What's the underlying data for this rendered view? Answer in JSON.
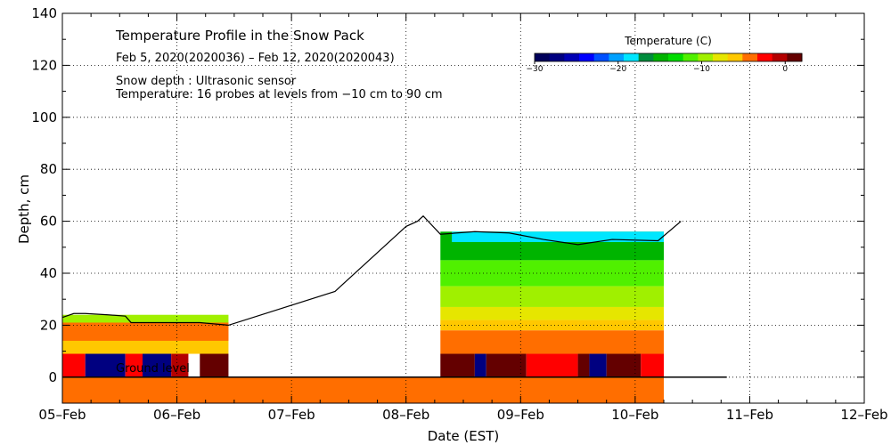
{
  "chart_data": {
    "type": "heatmap",
    "title": "Temperature Profile in the Snow Pack",
    "subtitle": "Feb  5, 2020(2020036) – Feb 12, 2020(2020043)",
    "notes": [
      "Snow depth : Ultrasonic sensor",
      "Temperature: 16 probes at levels from −10 cm to 90 cm"
    ],
    "xlabel": "Date (EST)",
    "ylabel": "Depth, cm",
    "xlim": [
      0,
      7
    ],
    "ylim": [
      -10,
      140
    ],
    "x_ticks": [
      {
        "value": 0,
        "label": "05–Feb"
      },
      {
        "value": 1,
        "label": "06–Feb"
      },
      {
        "value": 2,
        "label": "07–Feb"
      },
      {
        "value": 3,
        "label": "08–Feb"
      },
      {
        "value": 4,
        "label": "09–Feb"
      },
      {
        "value": 5,
        "label": "10–Feb"
      },
      {
        "value": 6,
        "label": "11–Feb"
      },
      {
        "value": 7,
        "label": "12–Feb"
      }
    ],
    "y_ticks": [
      0,
      20,
      40,
      60,
      80,
      100,
      120,
      140
    ],
    "ground_level_label": "Ground level",
    "colorbar": {
      "title": "Temperature (C)",
      "range": [
        -30,
        2
      ],
      "ticks": [
        {
          "value": -30,
          "label": "−30"
        },
        {
          "value": -20,
          "label": "−20"
        },
        {
          "value": -10,
          "label": "−10"
        },
        {
          "value": 0,
          "label": "0"
        }
      ],
      "colors": [
        "#00005a",
        "#000080",
        "#0000b4",
        "#0000ff",
        "#0050ff",
        "#00a0ff",
        "#00e6ff",
        "#008c3c",
        "#00b400",
        "#00dc00",
        "#50f000",
        "#a0f000",
        "#e6e600",
        "#ffc800",
        "#ff6e00",
        "#ff0000",
        "#b40000",
        "#640000"
      ]
    },
    "snow_depth": [
      [
        0.0,
        23
      ],
      [
        0.1,
        24.5
      ],
      [
        0.2,
        24.5
      ],
      [
        0.4,
        24
      ],
      [
        0.55,
        23.5
      ],
      [
        0.6,
        21
      ],
      [
        1.0,
        21
      ],
      [
        1.2,
        21
      ],
      [
        1.45,
        20
      ],
      [
        2.38,
        33
      ],
      [
        3.0,
        58
      ],
      [
        3.1,
        60
      ],
      [
        3.15,
        62
      ],
      [
        3.3,
        55
      ],
      [
        3.6,
        56
      ],
      [
        3.9,
        55.5
      ],
      [
        4.2,
        53
      ],
      [
        4.5,
        51
      ],
      [
        4.8,
        53
      ],
      [
        5.2,
        52.5
      ],
      [
        5.4,
        60
      ]
    ],
    "layers": [
      {
        "x0": 0.0,
        "x1": 1.45,
        "y0": 20,
        "y1": 24,
        "color": "#a0f000"
      },
      {
        "x0": 0.0,
        "x1": 1.45,
        "y0": 17,
        "y1": 21,
        "color": "#e6e600"
      },
      {
        "x0": 0.0,
        "x1": 1.45,
        "y0": 9,
        "y1": 17,
        "color": "#ffc800"
      },
      {
        "x0": 0.0,
        "x1": 1.45,
        "y0": 14,
        "y1": 21,
        "color": "#ff6e00"
      },
      {
        "x0": 0.0,
        "x1": 0.2,
        "y0": 0,
        "y1": 9,
        "color": "#ff0000"
      },
      {
        "x0": 0.2,
        "x1": 0.55,
        "y0": 0,
        "y1": 9,
        "color": "#000080"
      },
      {
        "x0": 0.55,
        "x1": 0.7,
        "y0": 0,
        "y1": 9,
        "color": "#ff0000"
      },
      {
        "x0": 0.7,
        "x1": 0.95,
        "y0": 0,
        "y1": 9,
        "color": "#000080"
      },
      {
        "x0": 0.95,
        "x1": 1.1,
        "y0": 0,
        "y1": 9,
        "color": "#b40000"
      },
      {
        "x0": 1.2,
        "x1": 1.45,
        "y0": 0,
        "y1": 9,
        "color": "#640000"
      },
      {
        "x0": 0.0,
        "x1": 5.25,
        "y0": -10,
        "y1": 0,
        "color": "#ff6e00"
      },
      {
        "x0": 3.3,
        "x1": 5.25,
        "y0": 45,
        "y1": 56,
        "color": "#00b400"
      },
      {
        "x0": 3.3,
        "x1": 5.25,
        "y0": 35,
        "y1": 45,
        "color": "#50f000"
      },
      {
        "x0": 3.3,
        "x1": 5.25,
        "y0": 27,
        "y1": 35,
        "color": "#a0f000"
      },
      {
        "x0": 3.3,
        "x1": 5.25,
        "y0": 22,
        "y1": 27,
        "color": "#e6e600"
      },
      {
        "x0": 3.3,
        "x1": 5.25,
        "y0": 18,
        "y1": 22,
        "color": "#ffc800"
      },
      {
        "x0": 3.3,
        "x1": 5.25,
        "y0": 9,
        "y1": 18,
        "color": "#ff6e00"
      },
      {
        "x0": 3.3,
        "x1": 3.6,
        "y0": 0,
        "y1": 9,
        "color": "#640000"
      },
      {
        "x0": 3.6,
        "x1": 3.7,
        "y0": 0,
        "y1": 9,
        "color": "#000080"
      },
      {
        "x0": 3.7,
        "x1": 4.05,
        "y0": 0,
        "y1": 9,
        "color": "#640000"
      },
      {
        "x0": 4.05,
        "x1": 4.5,
        "y0": 0,
        "y1": 9,
        "color": "#ff0000"
      },
      {
        "x0": 4.5,
        "x1": 4.6,
        "y0": 0,
        "y1": 9,
        "color": "#640000"
      },
      {
        "x0": 4.6,
        "x1": 4.75,
        "y0": 0,
        "y1": 9,
        "color": "#000080"
      },
      {
        "x0": 4.75,
        "x1": 5.05,
        "y0": 0,
        "y1": 9,
        "color": "#640000"
      },
      {
        "x0": 5.05,
        "x1": 5.25,
        "y0": 0,
        "y1": 9,
        "color": "#ff0000"
      },
      {
        "x0": 3.4,
        "x1": 5.25,
        "y0": 52,
        "y1": 56,
        "color": "#00e6ff"
      }
    ]
  },
  "page": {
    "colors": {
      "background": "#ffffff",
      "axis": "#000000"
    }
  }
}
